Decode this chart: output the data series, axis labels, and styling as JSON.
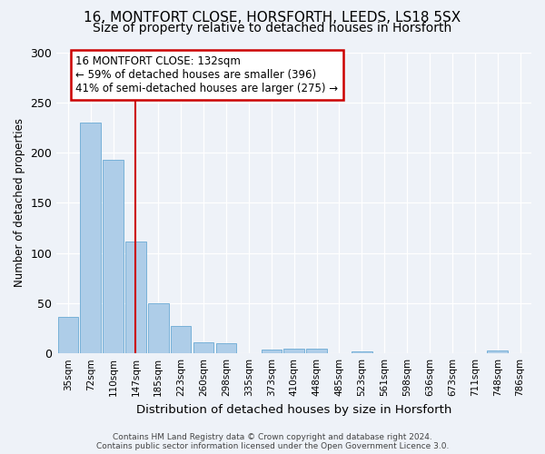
{
  "title1": "16, MONTFORT CLOSE, HORSFORTH, LEEDS, LS18 5SX",
  "title2": "Size of property relative to detached houses in Horsforth",
  "xlabel": "Distribution of detached houses by size in Horsforth",
  "ylabel": "Number of detached properties",
  "bin_labels": [
    "35sqm",
    "72sqm",
    "110sqm",
    "147sqm",
    "185sqm",
    "223sqm",
    "260sqm",
    "298sqm",
    "335sqm",
    "373sqm",
    "410sqm",
    "448sqm",
    "485sqm",
    "523sqm",
    "561sqm",
    "598sqm",
    "636sqm",
    "673sqm",
    "711sqm",
    "748sqm",
    "786sqm"
  ],
  "bar_values": [
    36,
    230,
    193,
    111,
    50,
    27,
    11,
    10,
    0,
    4,
    5,
    5,
    0,
    2,
    0,
    0,
    0,
    0,
    0,
    3,
    0
  ],
  "bar_color": "#aecde8",
  "bar_edgecolor": "#6aaad4",
  "property_line_x": 3.0,
  "property_line_color": "#cc0000",
  "annotation_text": "16 MONTFORT CLOSE: 132sqm\n← 59% of detached houses are smaller (396)\n41% of semi-detached houses are larger (275) →",
  "annotation_box_color": "#ffffff",
  "annotation_box_edgecolor": "#cc0000",
  "ylim": [
    0,
    300
  ],
  "yticks": [
    0,
    50,
    100,
    150,
    200,
    250,
    300
  ],
  "footer_text": "Contains HM Land Registry data © Crown copyright and database right 2024.\nContains public sector information licensed under the Open Government Licence 3.0.",
  "background_color": "#eef2f8",
  "plot_background": "#eef2f8",
  "title1_fontsize": 11,
  "title2_fontsize": 10,
  "annotation_fontsize": 8.5,
  "xlabel_fontsize": 9.5,
  "ylabel_fontsize": 8.5,
  "footer_fontsize": 6.5,
  "grid_color": "#ffffff"
}
